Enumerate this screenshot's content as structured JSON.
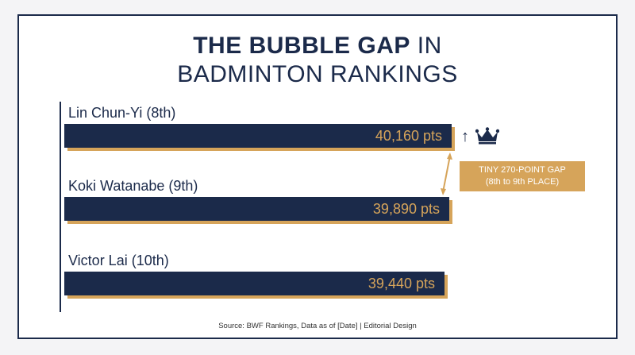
{
  "title": {
    "bold": "THE BUBBLE GAP",
    "light_inline": "IN",
    "line2": "BADMINTON RANKINGS"
  },
  "annotation": {
    "line1": "TINY 270-POINT GAP",
    "line2": "(8th to 9th PLACE)"
  },
  "source": "Source: BWF Rankings, Data as of [Date] | Editorial Design",
  "icons": {
    "leader_marker": "up-arrow-icon",
    "leader_badge": "crown-icon",
    "gap": "double-arrow-icon"
  },
  "colors": {
    "bar": "#1b2a4a",
    "accent": "#d6a45a",
    "text": "#1b2a4a"
  },
  "chart_data": {
    "type": "bar",
    "orientation": "horizontal",
    "title": "THE BUBBLE GAP IN BADMINTON RANKINGS",
    "categories": [
      "Lin Chun-Yi (8th)",
      "Koki Watanabe (9th)",
      "Victor Lai (10th)"
    ],
    "values": [
      40160,
      39890,
      39440
    ],
    "value_labels": [
      "40,160 pts",
      "39,890 pts",
      "39,440 pts"
    ],
    "unit": "pts",
    "grid": false,
    "legend": "none"
  }
}
